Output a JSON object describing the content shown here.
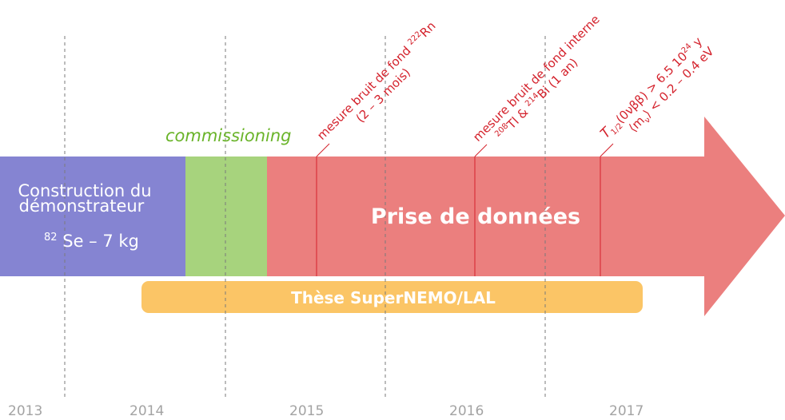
{
  "colors": {
    "construction": "#8584d2",
    "commissioning": "#a7d37d",
    "data_taking": "#eb7f7e",
    "thesis": "#fbc566",
    "milestone": "#d4222c",
    "year": "#a3a3a3",
    "gridline": "#7a7a7a"
  },
  "years": [
    "2013",
    "2014",
    "2015",
    "2016",
    "2017"
  ],
  "phases": {
    "construction_line1": "Construction du",
    "construction_line2": "démonstrateur",
    "construction_mass_sup": "82",
    "construction_mass": "Se – 7 kg",
    "commissioning": "commissioning",
    "data_taking": "Prise de données",
    "thesis": "Thèse SuperNEMO/LAL"
  },
  "milestones": {
    "radon": {
      "line1": "mesure bruit de fond ",
      "line1_sup": "222",
      "line1_end": "Rn",
      "line2": "(2 – 3 mois)"
    },
    "internal": {
      "line1": "mesure bruit de fond interne",
      "line2_sup1": "208",
      "line2_a": "Tl & ",
      "line2_sup2": "214",
      "line2_b": "Bi (1 an)"
    },
    "sensitivity": {
      "line1_T": "T",
      "line1_sub": "1/2",
      "line1_a": "(0νββ) > 6.5 10",
      "line1_sup": "24",
      "line1_b": " y",
      "line2_a": "⟨m",
      "line2_sub": "ν",
      "line2_b": "⟩ < 0.2 – 0.4 eV"
    }
  }
}
